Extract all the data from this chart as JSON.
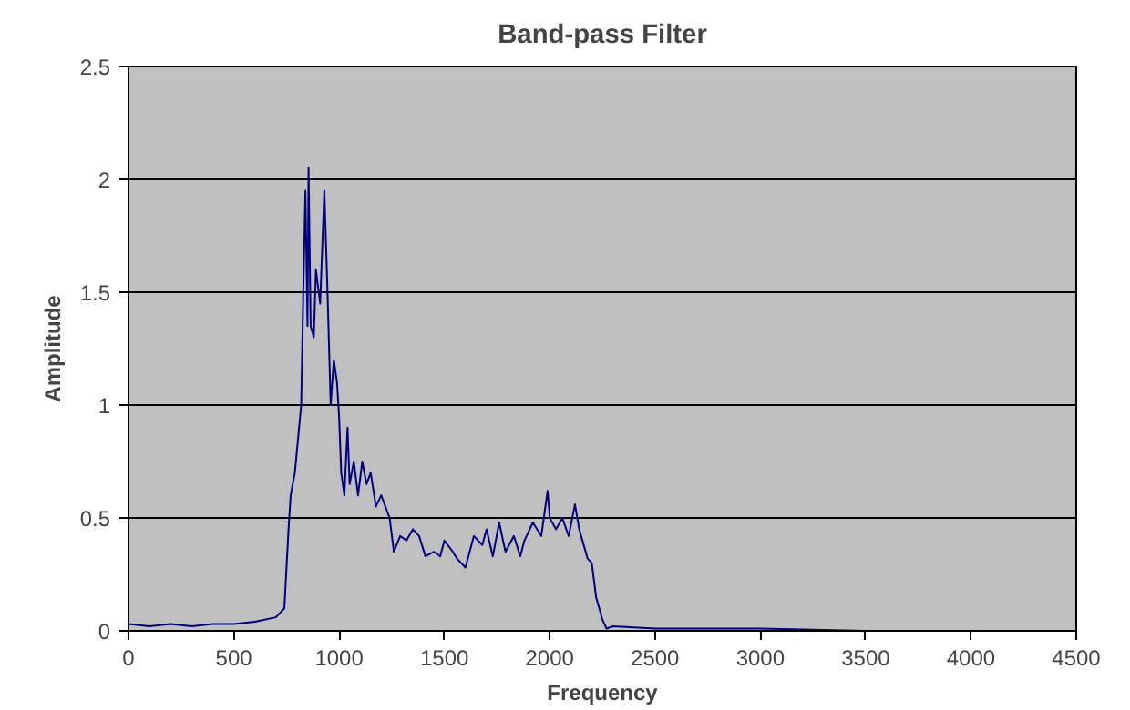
{
  "chart_data": {
    "type": "line",
    "title": "Band-pass Filter",
    "xlabel": "Frequency",
    "ylabel": "Amplitude",
    "xlim": [
      0,
      4500
    ],
    "xticks": [
      0,
      500,
      1000,
      1500,
      2000,
      2500,
      3000,
      3500,
      4000,
      4500
    ],
    "ylim": [
      0,
      2.5
    ],
    "yticks": [
      0,
      0.5,
      1,
      1.5,
      2,
      2.5
    ],
    "grid": "y",
    "marker": "none",
    "line_style": "solid",
    "series": [
      {
        "color": "#000080",
        "x": [
          0,
          100,
          200,
          300,
          400,
          500,
          600,
          700,
          740,
          760,
          770,
          790,
          810,
          820,
          830,
          840,
          850,
          855,
          865,
          880,
          890,
          910,
          930,
          945,
          960,
          975,
          990,
          1000,
          1010,
          1025,
          1040,
          1050,
          1070,
          1090,
          1110,
          1130,
          1150,
          1175,
          1200,
          1240,
          1260,
          1290,
          1320,
          1350,
          1380,
          1410,
          1450,
          1480,
          1500,
          1540,
          1560,
          1600,
          1640,
          1680,
          1700,
          1730,
          1760,
          1790,
          1830,
          1860,
          1880,
          1920,
          1960,
          1990,
          2000,
          2030,
          2060,
          2090,
          2120,
          2140,
          2180,
          2200,
          2220,
          2250,
          2270,
          2300,
          2500,
          3000,
          3500,
          3900
        ],
        "values": [
          0.03,
          0.02,
          0.03,
          0.02,
          0.03,
          0.03,
          0.04,
          0.06,
          0.1,
          0.45,
          0.6,
          0.7,
          0.9,
          1.0,
          1.5,
          1.95,
          1.35,
          2.05,
          1.35,
          1.3,
          1.6,
          1.45,
          1.95,
          1.5,
          1.0,
          1.2,
          1.1,
          0.95,
          0.7,
          0.6,
          0.9,
          0.65,
          0.75,
          0.6,
          0.75,
          0.65,
          0.7,
          0.55,
          0.6,
          0.5,
          0.35,
          0.42,
          0.4,
          0.45,
          0.42,
          0.33,
          0.35,
          0.33,
          0.4,
          0.35,
          0.32,
          0.28,
          0.42,
          0.38,
          0.45,
          0.33,
          0.48,
          0.35,
          0.42,
          0.33,
          0.4,
          0.48,
          0.42,
          0.62,
          0.5,
          0.45,
          0.5,
          0.42,
          0.56,
          0.45,
          0.32,
          0.3,
          0.15,
          0.05,
          0.01,
          0.02,
          0.01,
          0.01,
          0.0,
          0.0
        ]
      }
    ]
  }
}
